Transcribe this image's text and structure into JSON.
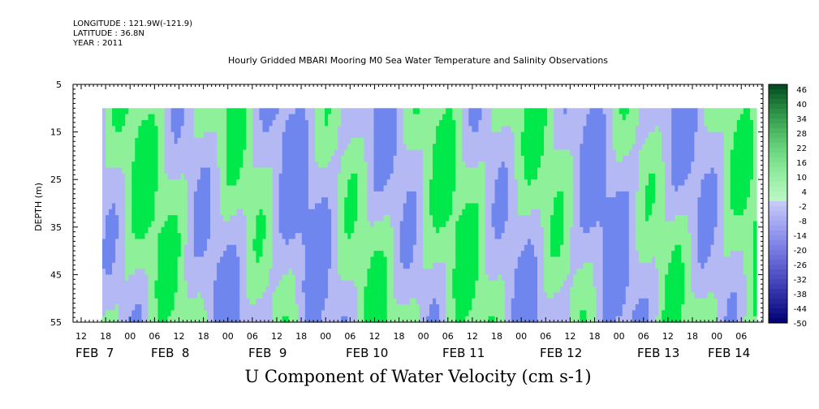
{
  "header": {
    "longitude": "LONGITUDE : 121.9W(-121.9)",
    "latitude": "LATITUDE : 36.8N",
    "year": "YEAR : 2011"
  },
  "chart_data": {
    "type": "heatmap",
    "title": "Hourly Gridded MBARI Mooring M0 Sea Water Temperature and Salinity Observations",
    "xlabel": "U Component of Water Velocity (cm s-1)",
    "ylabel": "DEPTH (m)",
    "ylim": [
      55,
      5
    ],
    "y_ticks": [
      5,
      15,
      25,
      35,
      45,
      55
    ],
    "data_depth_range": [
      10,
      55
    ],
    "x_hour_tick_labels": [
      "12",
      "18",
      "00",
      "06",
      "12",
      "18",
      "00",
      "06",
      "12",
      "18",
      "00",
      "06",
      "12",
      "18",
      "00",
      "06",
      "12",
      "18",
      "00",
      "06",
      "12",
      "18",
      "00",
      "06",
      "12",
      "18",
      "00",
      "06"
    ],
    "x_date_labels": [
      "FEB  7",
      "FEB  8",
      "FEB  9",
      "FEB 10",
      "FEB 11",
      "FEB 12",
      "FEB 13",
      "FEB 14"
    ],
    "colorbar": {
      "levels": [
        48,
        46,
        44,
        42,
        40,
        38,
        36,
        34,
        32,
        30,
        28,
        26,
        24,
        22,
        20,
        18,
        16,
        14,
        12,
        10,
        8,
        6,
        4,
        2,
        0,
        -2,
        -4,
        -6,
        -8,
        -10,
        -12,
        -14,
        -16,
        -18,
        -20,
        -22,
        -24,
        -26,
        -28,
        -30,
        -32,
        -34,
        -36,
        -38,
        -40,
        -42,
        -44,
        -46,
        -48,
        -50
      ],
      "labels": [
        "46",
        "40",
        "34",
        "28",
        "22",
        "16",
        "10",
        "4",
        "-2",
        "-8",
        "-14",
        "-20",
        "-26",
        "-32",
        "-38",
        "-44",
        "-50"
      ]
    },
    "colors": {
      "strong_positive": "#00e84a",
      "weak_positive": "#8ff09a",
      "weak_negative": "#b4b9f4",
      "strong_negative": "#6f86ee"
    }
  }
}
